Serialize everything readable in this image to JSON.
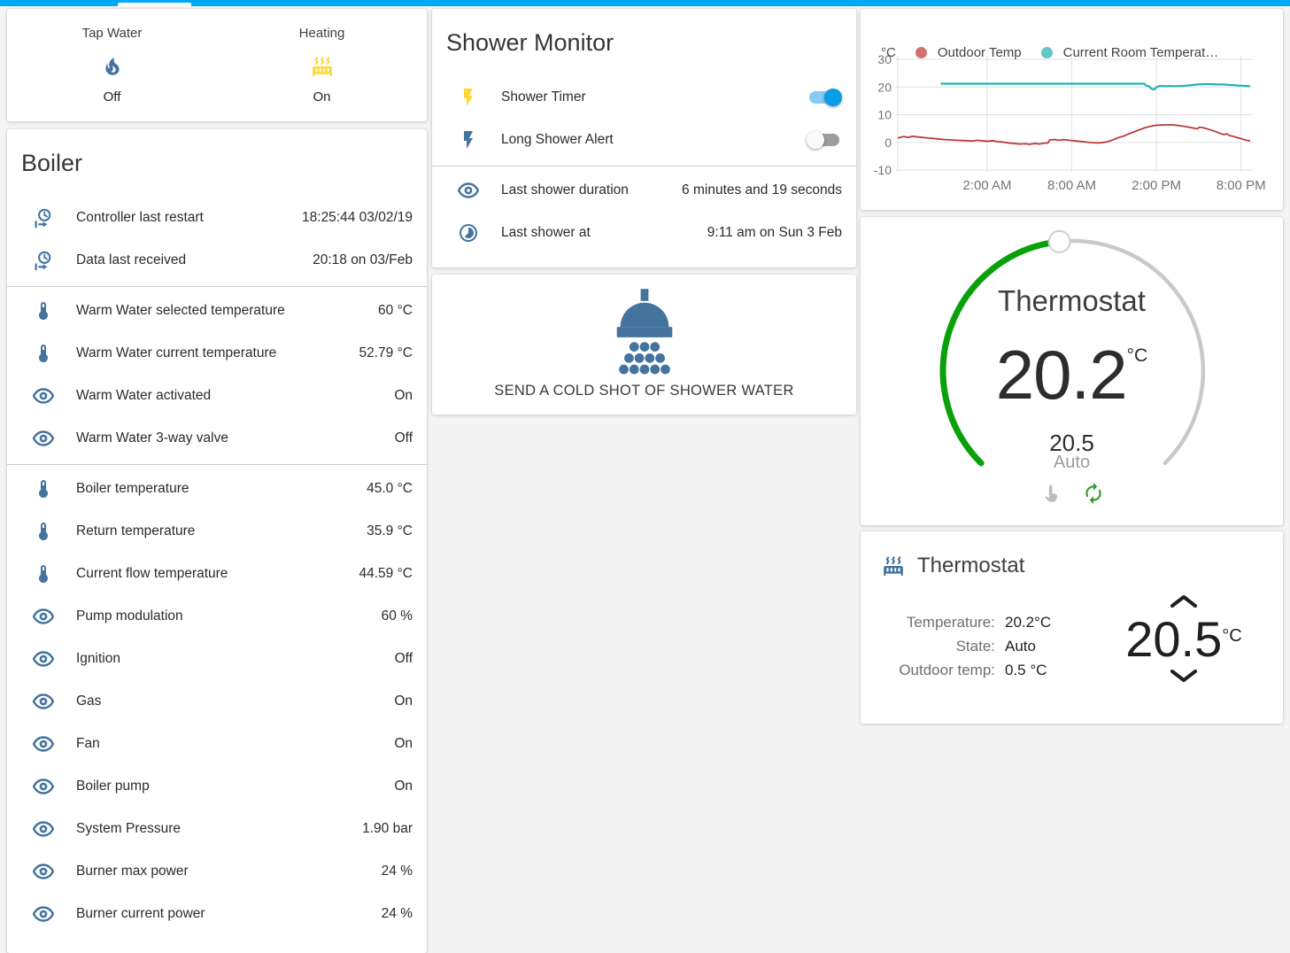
{
  "header": {
    "accent_color": "#03a9f4"
  },
  "colors": {
    "accent_blue": "#03a9f4",
    "icon_blue": "#44739e",
    "icon_yellow": "#fdd835",
    "toggle_on_thumb": "#0b9ce8",
    "arc_green": "#0aa00a",
    "arc_gray": "#c9c9c9",
    "card_bg": "#ffffff",
    "page_bg": "#f4f4f4"
  },
  "glance": {
    "items": [
      {
        "label": "Tap Water",
        "icon": "fire",
        "icon_color": "#44739e",
        "state": "Off"
      },
      {
        "label": "Heating",
        "icon": "radiator",
        "icon_color": "#fdd835",
        "state": "On"
      }
    ]
  },
  "boiler": {
    "title": "Boiler",
    "sections": [
      [
        {
          "icon": "clock-start",
          "icon_color": "#44739e",
          "label": "Controller last restart",
          "value": "18:25:44 03/02/19"
        },
        {
          "icon": "clock-start",
          "icon_color": "#44739e",
          "label": "Data last received",
          "value": "20:18 on 03/Feb"
        }
      ],
      [
        {
          "icon": "thermometer",
          "icon_color": "#44739e",
          "label": "Warm Water selected temperature",
          "value": "60 °C"
        },
        {
          "icon": "thermometer",
          "icon_color": "#44739e",
          "label": "Warm Water current temperature",
          "value": "52.79 °C"
        },
        {
          "icon": "eye",
          "icon_color": "#44739e",
          "label": "Warm Water activated",
          "value": "On"
        },
        {
          "icon": "eye",
          "icon_color": "#44739e",
          "label": "Warm Water 3-way valve",
          "value": "Off"
        }
      ],
      [
        {
          "icon": "thermometer",
          "icon_color": "#44739e",
          "label": "Boiler temperature",
          "value": "45.0 °C"
        },
        {
          "icon": "thermometer",
          "icon_color": "#44739e",
          "label": "Return temperature",
          "value": "35.9 °C"
        },
        {
          "icon": "thermometer",
          "icon_color": "#44739e",
          "label": "Current flow temperature",
          "value": "44.59 °C"
        },
        {
          "icon": "eye",
          "icon_color": "#44739e",
          "label": "Pump modulation",
          "value": "60 %"
        },
        {
          "icon": "eye",
          "icon_color": "#44739e",
          "label": "Ignition",
          "value": "Off"
        },
        {
          "icon": "eye",
          "icon_color": "#44739e",
          "label": "Gas",
          "value": "On"
        },
        {
          "icon": "eye",
          "icon_color": "#44739e",
          "label": "Fan",
          "value": "On"
        },
        {
          "icon": "eye",
          "icon_color": "#44739e",
          "label": "Boiler pump",
          "value": "On"
        },
        {
          "icon": "eye",
          "icon_color": "#44739e",
          "label": "System Pressure",
          "value": "1.90 bar"
        },
        {
          "icon": "eye",
          "icon_color": "#44739e",
          "label": "Burner max power",
          "value": "24 %"
        },
        {
          "icon": "eye",
          "icon_color": "#44739e",
          "label": "Burner current power",
          "value": "24 %"
        }
      ]
    ]
  },
  "shower_monitor": {
    "title": "Shower Monitor",
    "sections": [
      [
        {
          "icon": "flash",
          "icon_color": "#fdd835",
          "label": "Shower Timer",
          "toggle": "on"
        },
        {
          "icon": "flash",
          "icon_color": "#44739e",
          "label": "Long Shower Alert",
          "toggle": "off"
        }
      ],
      [
        {
          "icon": "eye",
          "icon_color": "#44739e",
          "label": "Last shower duration",
          "value": "6 minutes and 19 seconds"
        },
        {
          "icon": "timelapse",
          "icon_color": "#44739e",
          "label": "Last shower at",
          "value": "9:11 am on Sun 3 Feb"
        }
      ]
    ]
  },
  "shower_button": {
    "label": "SEND A COLD SHOT OF SHOWER WATER",
    "icon": "shower-head",
    "icon_color": "#44739e"
  },
  "chart_data": {
    "type": "line",
    "title": "",
    "ylabel": "°C",
    "xlabel": "",
    "grid": true,
    "legend_position": "top",
    "ylim": [
      -10,
      30
    ],
    "y_ticks": [
      30,
      20,
      10,
      0,
      -10
    ],
    "x_domain_hours": [
      -4.34,
      20.65
    ],
    "x_ticks": [
      {
        "h": 2,
        "label": "2:00 AM"
      },
      {
        "h": 8,
        "label": "8:00 AM"
      },
      {
        "h": 14,
        "label": "2:00 PM"
      },
      {
        "h": 20,
        "label": "8:00 PM"
      }
    ],
    "series": [
      {
        "name": "Outdoor Temp",
        "line_color": "#b73333",
        "dot_color": "#d47272",
        "points": [
          [
            -4.34,
            1.6
          ],
          [
            -4.1,
            1.9
          ],
          [
            -3.9,
            2.1
          ],
          [
            -3.6,
            1.8
          ],
          [
            -3.3,
            2.2
          ],
          [
            -3.0,
            2.0
          ],
          [
            -2.6,
            1.8
          ],
          [
            -2.2,
            1.6
          ],
          [
            -1.8,
            1.4
          ],
          [
            -1.4,
            1.2
          ],
          [
            -1.0,
            1.0
          ],
          [
            -0.6,
            0.9
          ],
          [
            -0.2,
            0.8
          ],
          [
            0.2,
            0.7
          ],
          [
            0.6,
            0.6
          ],
          [
            1.0,
            0.5
          ],
          [
            1.3,
            0.8
          ],
          [
            1.6,
            0.6
          ],
          [
            2.0,
            0.4
          ],
          [
            2.4,
            0.6
          ],
          [
            2.7,
            0.3
          ],
          [
            3.1,
            0.1
          ],
          [
            3.5,
            -0.2
          ],
          [
            3.9,
            -0.4
          ],
          [
            4.3,
            -0.6
          ],
          [
            4.7,
            -0.5
          ],
          [
            5.0,
            -0.7
          ],
          [
            5.4,
            -0.4
          ],
          [
            5.7,
            -0.6
          ],
          [
            6.0,
            -0.3
          ],
          [
            6.3,
            -0.2
          ],
          [
            6.45,
            0.9
          ],
          [
            6.8,
            1.0
          ],
          [
            7.1,
            0.8
          ],
          [
            7.4,
            1.0
          ],
          [
            7.8,
            0.8
          ],
          [
            8.1,
            0.6
          ],
          [
            8.5,
            0.4
          ],
          [
            8.9,
            0.2
          ],
          [
            9.3,
            0.0
          ],
          [
            9.7,
            -0.2
          ],
          [
            10.1,
            -0.1
          ],
          [
            10.4,
            0.1
          ],
          [
            10.7,
            0.5
          ],
          [
            11.0,
            1.1
          ],
          [
            11.3,
            1.7
          ],
          [
            11.7,
            2.3
          ],
          [
            12.0,
            3.0
          ],
          [
            12.4,
            3.8
          ],
          [
            12.8,
            4.6
          ],
          [
            13.2,
            5.3
          ],
          [
            13.6,
            5.8
          ],
          [
            14.0,
            6.2
          ],
          [
            14.5,
            6.3
          ],
          [
            15.0,
            6.4
          ],
          [
            15.4,
            6.2
          ],
          [
            15.8,
            5.9
          ],
          [
            16.2,
            5.6
          ],
          [
            16.6,
            5.2
          ],
          [
            16.9,
            4.9
          ],
          [
            17.05,
            5.5
          ],
          [
            17.3,
            5.3
          ],
          [
            17.6,
            4.9
          ],
          [
            17.9,
            4.4
          ],
          [
            18.2,
            3.9
          ],
          [
            18.5,
            3.3
          ],
          [
            18.8,
            2.8
          ],
          [
            19.0,
            3.1
          ],
          [
            19.15,
            2.5
          ],
          [
            19.5,
            2.1
          ],
          [
            19.9,
            1.5
          ],
          [
            20.3,
            0.9
          ],
          [
            20.65,
            0.5
          ]
        ]
      },
      {
        "name": "Current Room Temperat…",
        "line_color": "#22b5b5",
        "dot_color": "#66c6c6",
        "points": [
          [
            -1.3,
            21.2
          ],
          [
            2,
            21.2
          ],
          [
            6,
            21.2
          ],
          [
            10,
            21.2
          ],
          [
            13.15,
            21.2
          ],
          [
            13.25,
            20.6
          ],
          [
            13.45,
            20.3
          ],
          [
            13.65,
            19.4
          ],
          [
            13.85,
            19.1
          ],
          [
            14.0,
            19.9
          ],
          [
            14.15,
            20.3
          ],
          [
            14.4,
            20.4
          ],
          [
            14.7,
            20.3
          ],
          [
            15.0,
            20.4
          ],
          [
            15.3,
            20.3
          ],
          [
            15.7,
            20.4
          ],
          [
            16.1,
            20.5
          ],
          [
            16.5,
            20.7
          ],
          [
            16.9,
            20.9
          ],
          [
            17.3,
            21.0
          ],
          [
            17.6,
            21.1
          ],
          [
            17.9,
            21.0
          ],
          [
            18.3,
            20.9
          ],
          [
            18.7,
            20.9
          ],
          [
            19.1,
            20.8
          ],
          [
            19.5,
            20.7
          ],
          [
            19.9,
            20.5
          ],
          [
            20.3,
            20.4
          ],
          [
            20.65,
            20.3
          ]
        ]
      }
    ]
  },
  "dial": {
    "title": "Thermostat",
    "current": "20.2",
    "unit": "°C",
    "target": "20.5",
    "mode": "Auto"
  },
  "thermostat_card": {
    "title": "Thermostat",
    "rows": [
      {
        "label": "Temperature:",
        "value": "20.2°C"
      },
      {
        "label": "State:",
        "value": "Auto"
      },
      {
        "label": "Outdoor temp:",
        "value": "0.5 °C"
      }
    ],
    "target": "20.5",
    "target_unit": "°C"
  }
}
